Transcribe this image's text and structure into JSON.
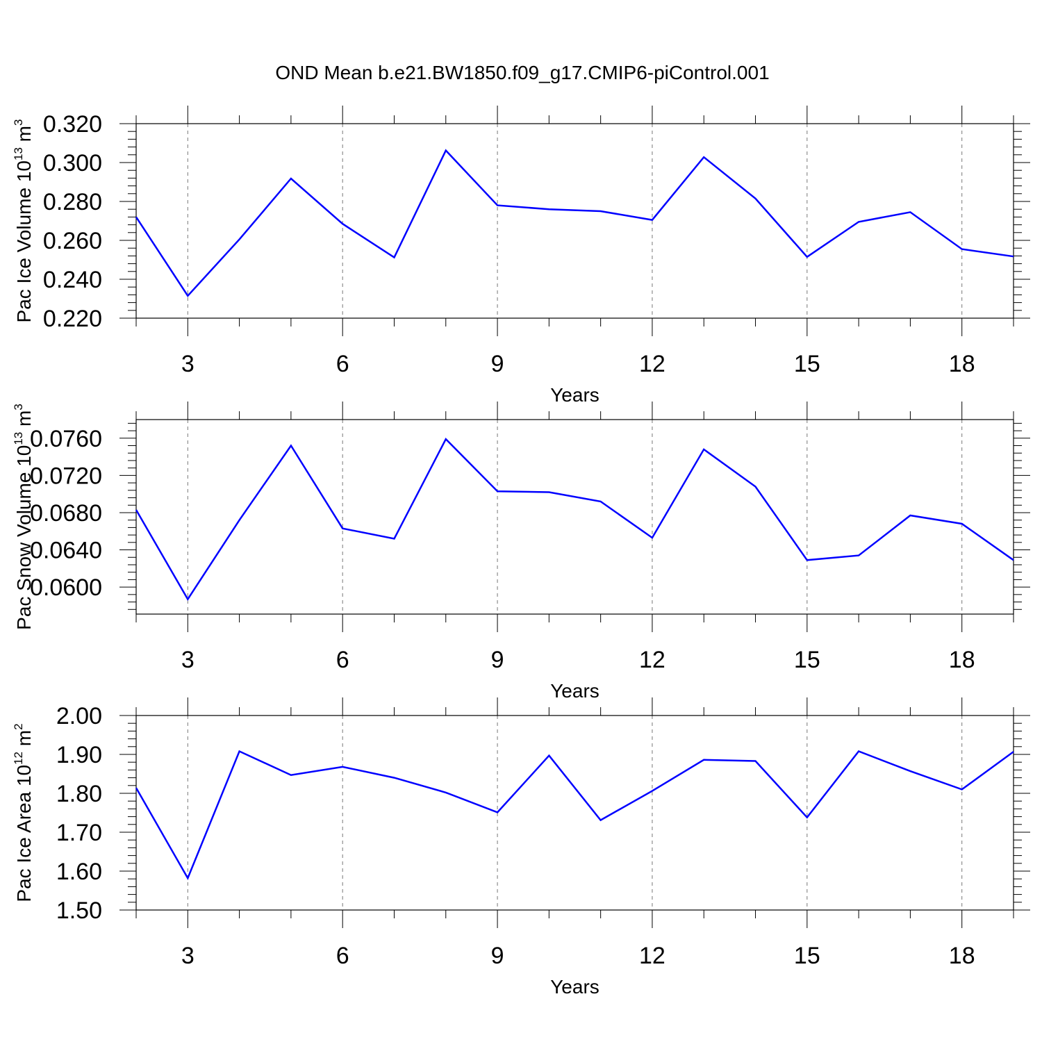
{
  "title": "OND Mean b.e21.BW1850.f09_g17.CMIP6-piControl.001",
  "chart_data": [
    {
      "type": "line",
      "xlabel": "Years",
      "ylabel_parts": [
        "Pac Ice Volume 10",
        "13",
        " m",
        "3"
      ],
      "xlim": [
        2,
        19
      ],
      "xticks": [
        3,
        6,
        9,
        12,
        15,
        18
      ],
      "xtick_labels": [
        "3",
        "6",
        "9",
        "12",
        "15",
        "18"
      ],
      "ylim": [
        0.22,
        0.32
      ],
      "yticks": [
        0.22,
        0.24,
        0.26,
        0.28,
        0.3,
        0.32
      ],
      "ytick_labels": [
        "0.220",
        "0.240",
        "0.260",
        "0.280",
        "0.300",
        "0.320"
      ],
      "grid": "vertical-dashed",
      "color": "#0000ff",
      "x": [
        2,
        3,
        4,
        5,
        6,
        7,
        8,
        9,
        10,
        11,
        12,
        13,
        14,
        15,
        16,
        17,
        18,
        19
      ],
      "y": [
        0.272,
        0.2315,
        0.2605,
        0.2918,
        0.2685,
        0.2512,
        0.3062,
        0.278,
        0.276,
        0.275,
        0.2705,
        0.3028,
        0.2815,
        0.2515,
        0.2695,
        0.2745,
        0.2555,
        0.2517
      ]
    },
    {
      "type": "line",
      "xlabel": "Years",
      "ylabel_parts": [
        "Pac Snow Volume 10",
        "13",
        " m",
        "3"
      ],
      "xlim": [
        2,
        19
      ],
      "xticks": [
        3,
        6,
        9,
        12,
        15,
        18
      ],
      "xtick_labels": [
        "3",
        "6",
        "9",
        "12",
        "15",
        "18"
      ],
      "ylim": [
        0.0571,
        0.078
      ],
      "yticks": [
        0.06,
        0.064,
        0.068,
        0.072,
        0.076
      ],
      "ytick_labels": [
        "0.0600",
        "0.0640",
        "0.0680",
        "0.0720",
        "0.0760"
      ],
      "grid": "vertical-dashed",
      "color": "#0000ff",
      "x": [
        2,
        3,
        4,
        5,
        6,
        7,
        8,
        9,
        10,
        11,
        12,
        13,
        14,
        15,
        16,
        17,
        18,
        19
      ],
      "y": [
        0.0683,
        0.0587,
        0.0672,
        0.0752,
        0.0663,
        0.0652,
        0.0759,
        0.0703,
        0.0702,
        0.0692,
        0.0653,
        0.0748,
        0.0708,
        0.0629,
        0.0634,
        0.0677,
        0.0668,
        0.0629
      ]
    },
    {
      "type": "line",
      "xlabel": "Years",
      "ylabel_parts": [
        "Pac Ice Area 10",
        "12",
        " m",
        "2"
      ],
      "xlim": [
        2,
        19
      ],
      "xticks": [
        3,
        6,
        9,
        12,
        15,
        18
      ],
      "xtick_labels": [
        "3",
        "6",
        "9",
        "12",
        "15",
        "18"
      ],
      "ylim": [
        1.5,
        2.0
      ],
      "yticks": [
        1.5,
        1.6,
        1.7,
        1.8,
        1.9,
        2.0
      ],
      "ytick_labels": [
        "1.50",
        "1.60",
        "1.70",
        "1.80",
        "1.90",
        "2.00"
      ],
      "grid": "vertical-dashed",
      "color": "#0000ff",
      "x": [
        2,
        3,
        4,
        5,
        6,
        7,
        8,
        9,
        10,
        11,
        12,
        13,
        14,
        15,
        16,
        17,
        18,
        19
      ],
      "y": [
        1.814,
        1.582,
        1.908,
        1.847,
        1.868,
        1.84,
        1.802,
        1.751,
        1.897,
        1.731,
        1.806,
        1.886,
        1.883,
        1.738,
        1.908,
        1.857,
        1.81,
        1.907
      ]
    }
  ]
}
